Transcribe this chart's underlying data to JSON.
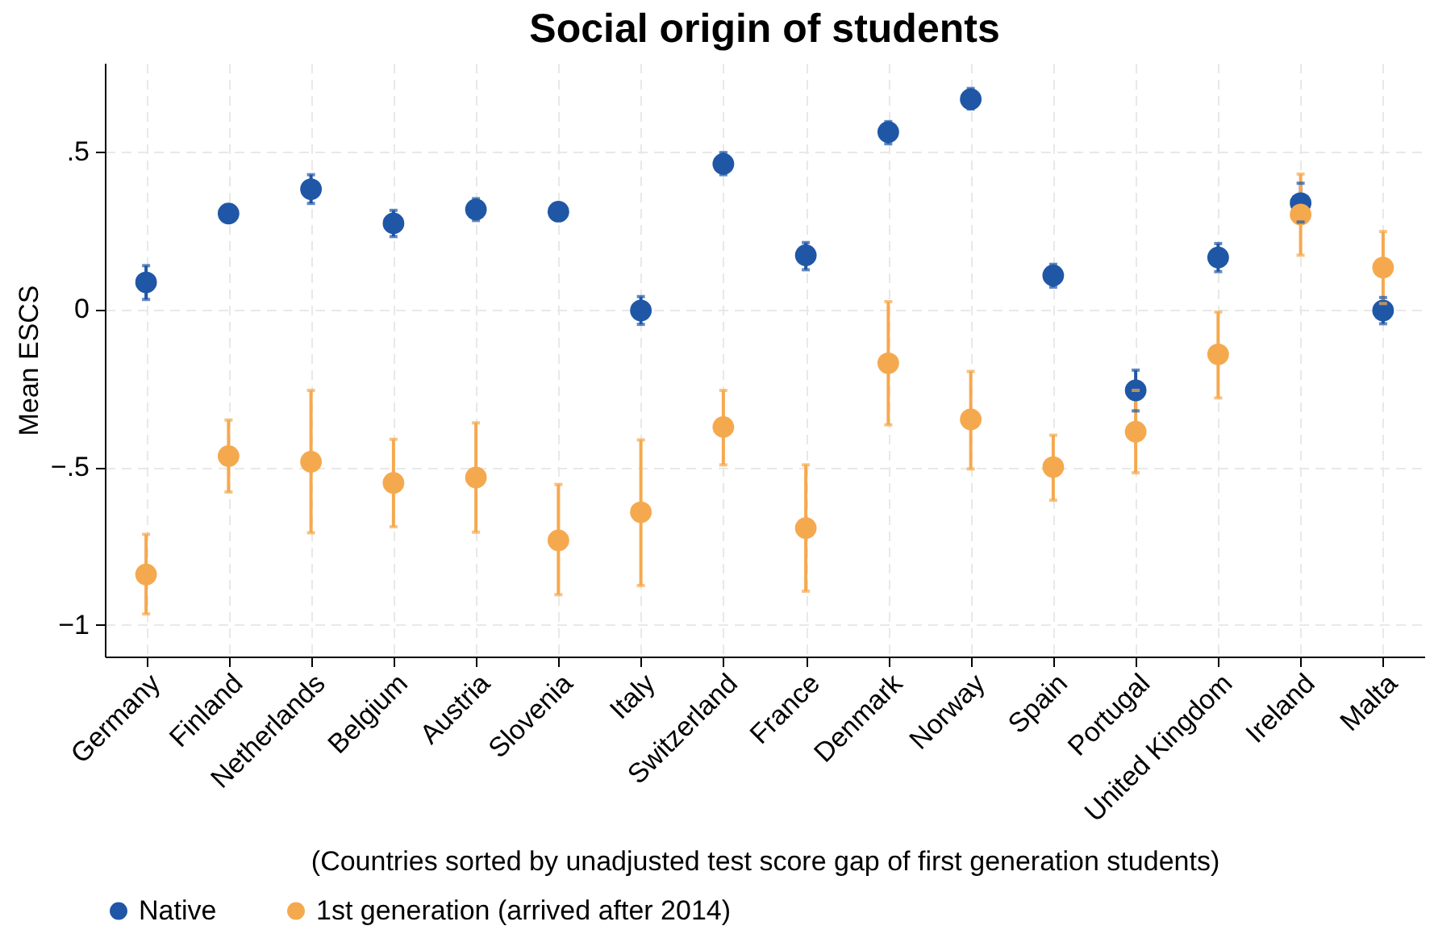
{
  "chart_data": {
    "type": "scatter",
    "title": "Social origin of students",
    "xlabel": "(Countries sorted by unadjusted test score gap of first generation students)",
    "ylabel": "Mean ESCS",
    "categories": [
      "Germany",
      "Finland",
      "Netherlands",
      "Belgium",
      "Austria",
      "Slovenia",
      "Italy",
      "Switzerland",
      "France",
      "Denmark",
      "Norway",
      "Spain",
      "Portugal",
      "United Kingdom",
      "Ireland",
      "Malta"
    ],
    "series": [
      {
        "name": "Native",
        "color": "#1f57a6",
        "values": [
          0.085,
          0.303,
          0.38,
          0.272,
          0.316,
          0.309,
          -0.004,
          0.46,
          0.171,
          0.561,
          0.665,
          0.107,
          -0.257,
          0.164,
          0.336,
          -0.004
        ],
        "errors": [
          [
            0.031,
            0.138
          ],
          [
            0.28,
            0.33
          ],
          [
            0.335,
            0.426
          ],
          [
            0.23,
            0.313
          ],
          [
            0.281,
            0.35
          ],
          null,
          [
            -0.048,
            0.04
          ],
          [
            0.426,
            0.496
          ],
          [
            0.125,
            0.211
          ],
          [
            0.524,
            0.594
          ],
          [
            0.634,
            0.699
          ],
          [
            0.07,
            0.142
          ],
          [
            -0.322,
            -0.193
          ],
          [
            0.119,
            0.208
          ],
          [
            0.276,
            0.399
          ],
          [
            -0.046,
            0.037
          ]
        ]
      },
      {
        "name": "1st generation (arrived after 2014)",
        "color": "#f5a94f",
        "values": [
          -0.84,
          -0.465,
          -0.483,
          -0.55,
          -0.533,
          -0.732,
          -0.643,
          -0.373,
          -0.693,
          -0.171,
          -0.349,
          -0.5,
          -0.388,
          -0.143,
          0.3,
          0.132
        ],
        "errors": [
          [
            -0.965,
            -0.713
          ],
          [
            -0.579,
            -0.351
          ],
          [
            -0.708,
            -0.257
          ],
          [
            -0.689,
            -0.412
          ],
          [
            -0.706,
            -0.36
          ],
          [
            -0.904,
            -0.555
          ],
          [
            -0.875,
            -0.414
          ],
          [
            -0.493,
            -0.257
          ],
          [
            -0.893,
            -0.493
          ],
          [
            -0.366,
            0.024
          ],
          [
            -0.506,
            -0.197
          ],
          [
            -0.605,
            -0.399
          ],
          [
            -0.518,
            -0.257
          ],
          [
            -0.281,
            -0.009
          ],
          [
            0.171,
            0.428
          ],
          [
            0.018,
            0.246
          ]
        ]
      }
    ],
    "ylim": [
      -1.1,
      0.78
    ],
    "yticks": [
      {
        "value": -1,
        "label": "−1"
      },
      {
        "value": -0.5,
        "label": "−.5"
      },
      0,
      {
        "value": 0.5,
        "label": ".5"
      }
    ],
    "grid": true,
    "legend": "bottom",
    "marker": "circle"
  }
}
